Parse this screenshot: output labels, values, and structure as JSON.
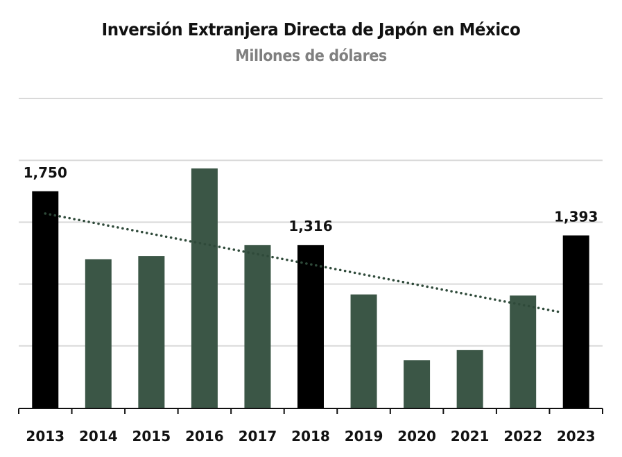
{
  "chart_data": {
    "type": "bar",
    "title": "Inversión Extranjera Directa de Japón en México",
    "subtitle": "Millones de dólares",
    "xlabel": "",
    "ylabel": "",
    "categories": [
      "2013",
      "2014",
      "2015",
      "2016",
      "2017",
      "2018",
      "2019",
      "2020",
      "2021",
      "2022",
      "2023"
    ],
    "values": [
      1750,
      1200,
      1227,
      1935,
      1316,
      1316,
      916,
      385,
      466,
      907,
      1393
    ],
    "highlighted": [
      true,
      false,
      false,
      false,
      false,
      true,
      false,
      false,
      false,
      false,
      true
    ],
    "data_labels": [
      {
        "index": 0,
        "text": "1,750"
      },
      {
        "index": 5,
        "text": "1,316"
      },
      {
        "index": 10,
        "text": "1,393"
      }
    ],
    "ylim": [
      0,
      2500
    ],
    "gridlines": [
      500,
      1000,
      1500,
      2000,
      2500
    ],
    "grid": true,
    "y_tick_labels_shown": false,
    "trendline": {
      "type": "linear",
      "style": "dotted",
      "start_value": 1570,
      "end_value": 770
    },
    "colors": {
      "bar": "#3b5646",
      "highlight": "#000000",
      "trendline": "#2f4a3a",
      "grid": "#d9d9d9",
      "axis": "#111111"
    },
    "legend": "none"
  }
}
